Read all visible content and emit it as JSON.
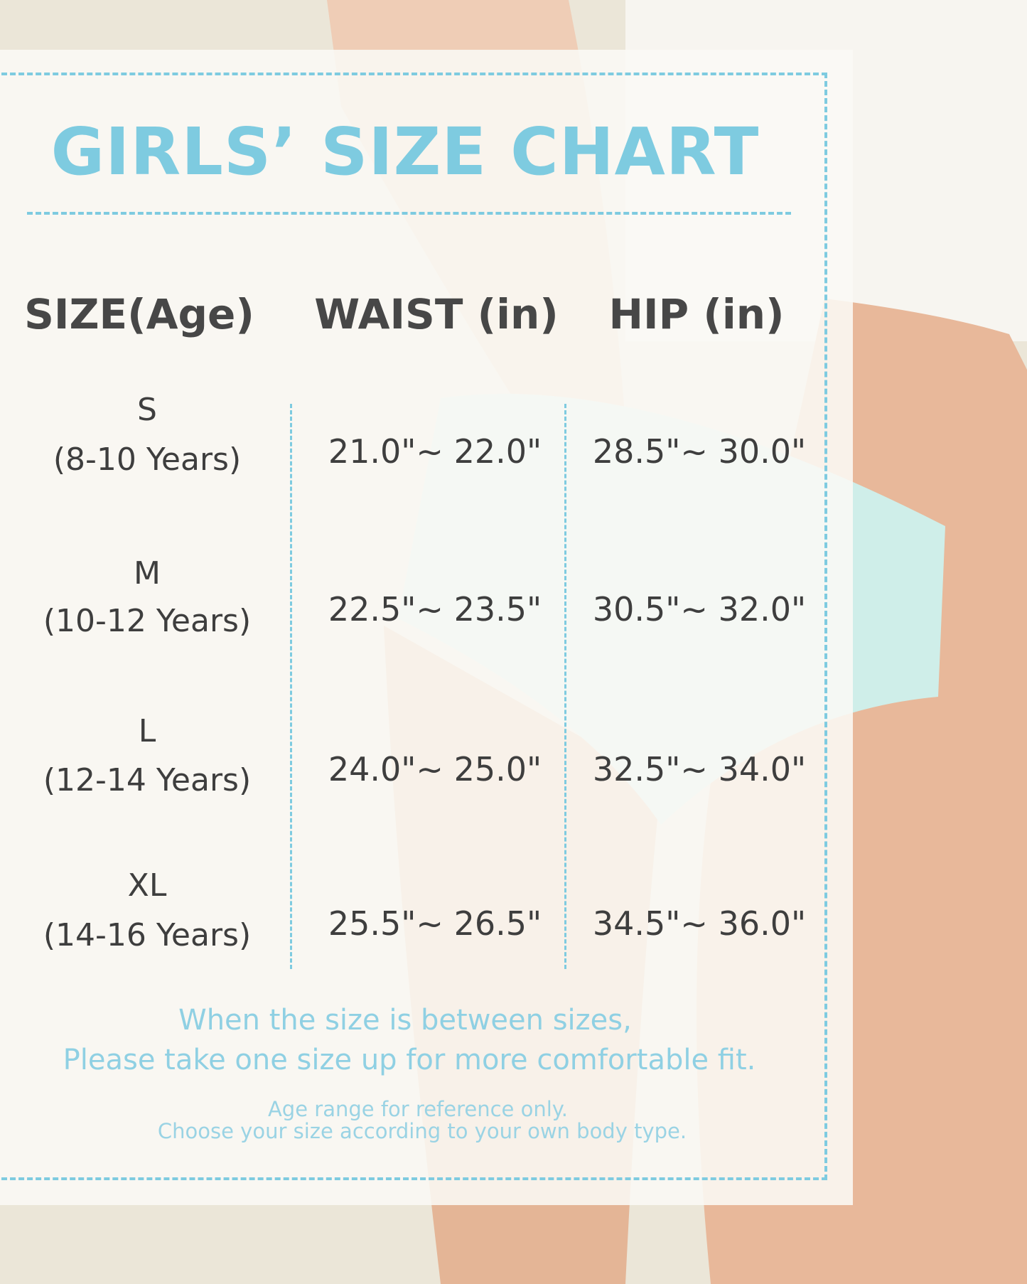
{
  "title": "GIRLS’ SIZE CHART",
  "colors": {
    "accent": "#7ecbe0",
    "text": "#444444"
  },
  "table": {
    "headers": [
      "SIZE(Age)",
      "WAIST (in)",
      "HIP (in)"
    ],
    "rows": [
      {
        "size": "S",
        "age": "(8-10 Years)",
        "waist": "21.0\"~ 22.0\"",
        "hip": "28.5\"~ 30.0\""
      },
      {
        "size": "M",
        "age": "(10-12 Years)",
        "waist": "22.5\"~ 23.5\"",
        "hip": "30.5\"~ 32.0\""
      },
      {
        "size": "L",
        "age": "(12-14 Years)",
        "waist": "24.0\"~ 25.0\"",
        "hip": "32.5\"~ 34.0\""
      },
      {
        "size": "XL",
        "age": "(14-16 Years)",
        "waist": "25.5\"~ 26.5\"",
        "hip": "34.5\"~ 36.0\""
      }
    ]
  },
  "note": {
    "line1": "When the size is between sizes,",
    "line2": "Please take one size up for more comfortable fit."
  },
  "disclaimer": {
    "line1": "Age range for reference only.",
    "line2": "Choose your size according to your own body type."
  }
}
